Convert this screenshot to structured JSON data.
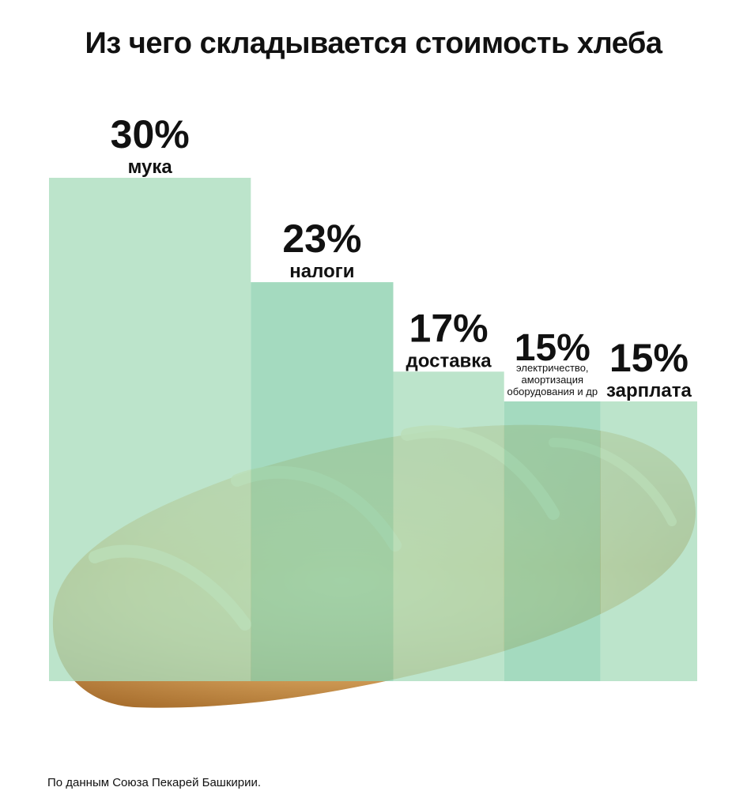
{
  "title": "Из чего складывается стоимость хлеба",
  "source": "По данным Союза Пекарей Башкирии.",
  "colors": {
    "bar_light": "#a9dcbc",
    "bar_dark": "#8bd0ad",
    "crust_dark": "#c98a3c",
    "crust_light": "#f2c77a",
    "text": "#111111"
  },
  "chart_data": {
    "type": "bar",
    "title": "Из чего складывается стоимость хлеба",
    "unit": "%",
    "categories": [
      "мука",
      "налоги",
      "доставка",
      "электричество, амортизация оборудования и др",
      "зарплата"
    ],
    "category_lines": [
      [
        "мука"
      ],
      [
        "налоги"
      ],
      [
        "доставка"
      ],
      [
        "электричество,",
        "амортизация",
        "оборудования и др"
      ],
      [
        "зарплата"
      ]
    ],
    "values": [
      30,
      23,
      17,
      15,
      15
    ],
    "value_labels": [
      "30%",
      "23%",
      "17%",
      "15%",
      "15%"
    ],
    "bar_width_weights": [
      255,
      180,
      140,
      122,
      122
    ],
    "ylim": [
      0,
      30
    ],
    "grid": false,
    "legend": "none",
    "background_image": "bread-loaf"
  }
}
